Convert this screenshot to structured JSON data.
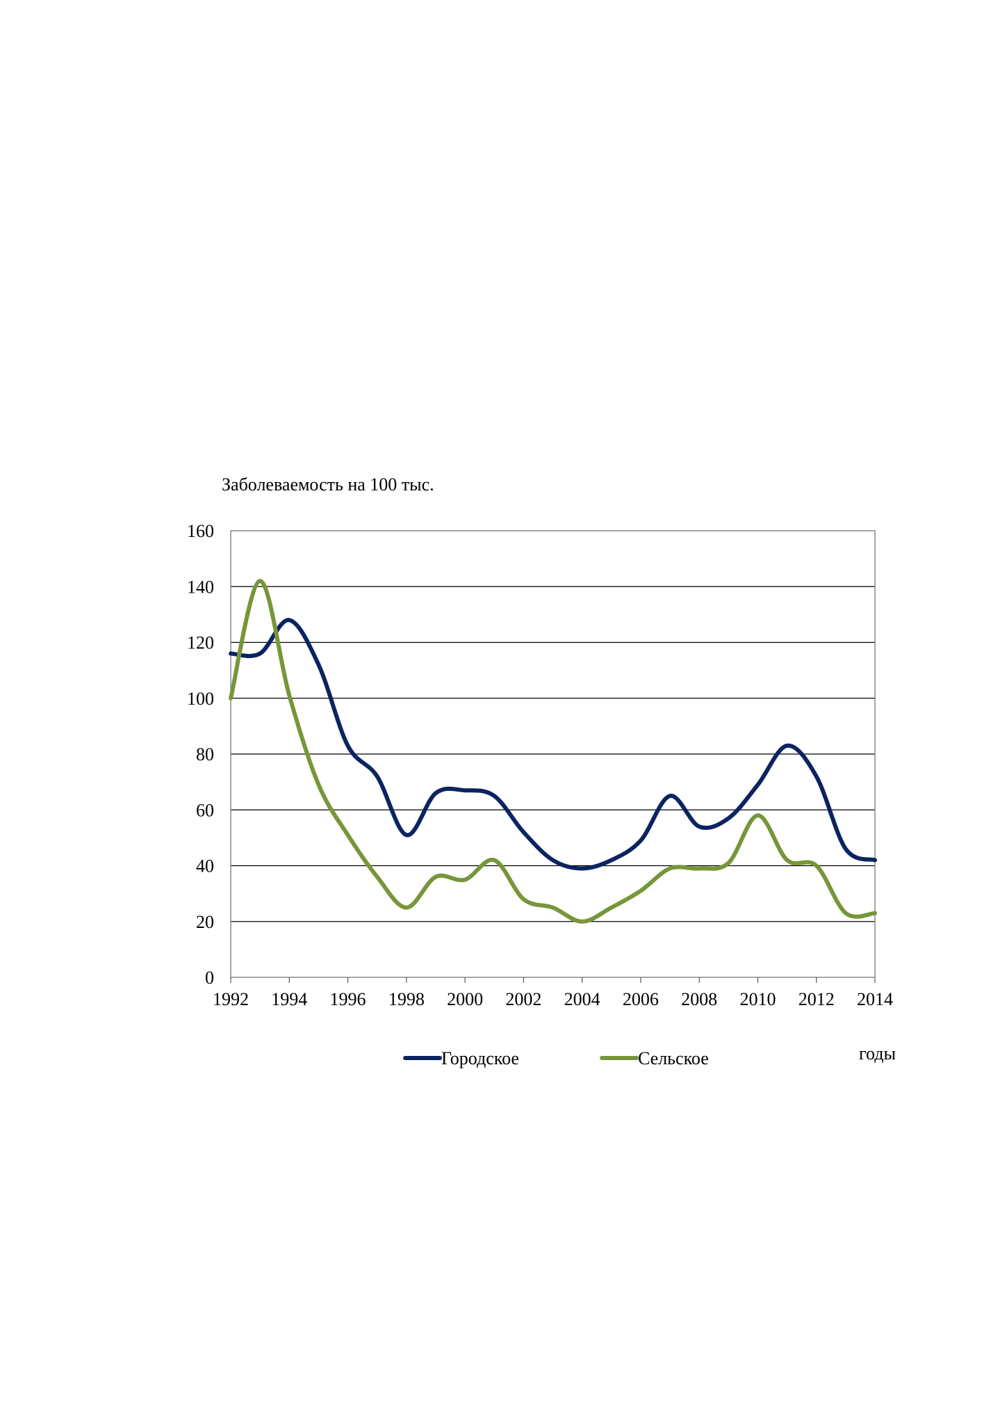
{
  "chart_data": {
    "type": "line",
    "title": "",
    "ylabel": "Заболеваемость на 100 тыс.",
    "xlabel": "годы",
    "x": [
      1992,
      1993,
      1994,
      1995,
      1996,
      1997,
      1998,
      1999,
      2000,
      2001,
      2002,
      2003,
      2004,
      2005,
      2006,
      2007,
      2008,
      2009,
      2010,
      2011,
      2012,
      2013,
      2014
    ],
    "xticks": [
      "1992",
      "1994",
      "1996",
      "1998",
      "2000",
      "2002",
      "2004",
      "2006",
      "2008",
      "2010",
      "2012",
      "2014"
    ],
    "yticks": [
      "0",
      "20",
      "40",
      "60",
      "80",
      "100",
      "120",
      "140",
      "160"
    ],
    "xlim": [
      1992,
      2014
    ],
    "ylim": [
      0,
      160
    ],
    "grid": true,
    "legend_position": "bottom",
    "series": [
      {
        "name": "Городское",
        "color": "#0b2461",
        "values": [
          116,
          116,
          128,
          112,
          83,
          72,
          51,
          66,
          67,
          65,
          52,
          42,
          39,
          42,
          49,
          65,
          54,
          57,
          69,
          83,
          72,
          46,
          42
        ]
      },
      {
        "name": "Сельское",
        "color": "#77963a",
        "values": [
          100,
          142,
          101,
          69,
          51,
          36,
          25,
          36,
          35,
          42,
          28,
          25,
          20,
          25,
          31,
          39,
          39,
          41,
          58,
          42,
          40,
          23,
          23
        ]
      }
    ]
  }
}
